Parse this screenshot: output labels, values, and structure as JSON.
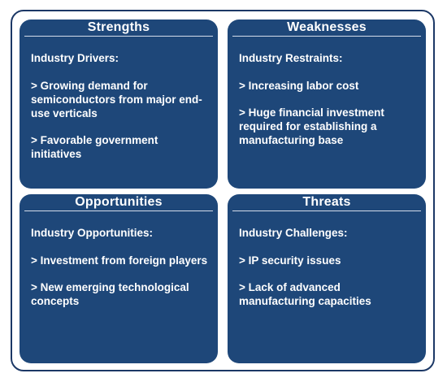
{
  "swot": {
    "strengths": {
      "title": "Strengths",
      "subtitle": "Industry Drivers:",
      "items": [
        "> Growing demand for semiconductors from major end-use verticals",
        "> Favorable government initiatives"
      ]
    },
    "weaknesses": {
      "title": "Weaknesses",
      "subtitle": "Industry Restraints:",
      "items": [
        "> Increasing labor cost",
        "> Huge financial investment required for establishing a manufacturing base"
      ]
    },
    "opportunities": {
      "title": "Opportunities",
      "subtitle": "Industry Opportunities:",
      "items": [
        "> Investment from foreign players",
        "> New emerging technological concepts"
      ]
    },
    "threats": {
      "title": "Threats",
      "subtitle": "Industry Challenges:",
      "items": [
        "> IP security issues",
        "> Lack of advanced manufacturing capacities"
      ]
    }
  },
  "colors": {
    "quadrant_fill": "#1e4779",
    "frame_border": "#1c3866",
    "text": "#ffffff"
  }
}
